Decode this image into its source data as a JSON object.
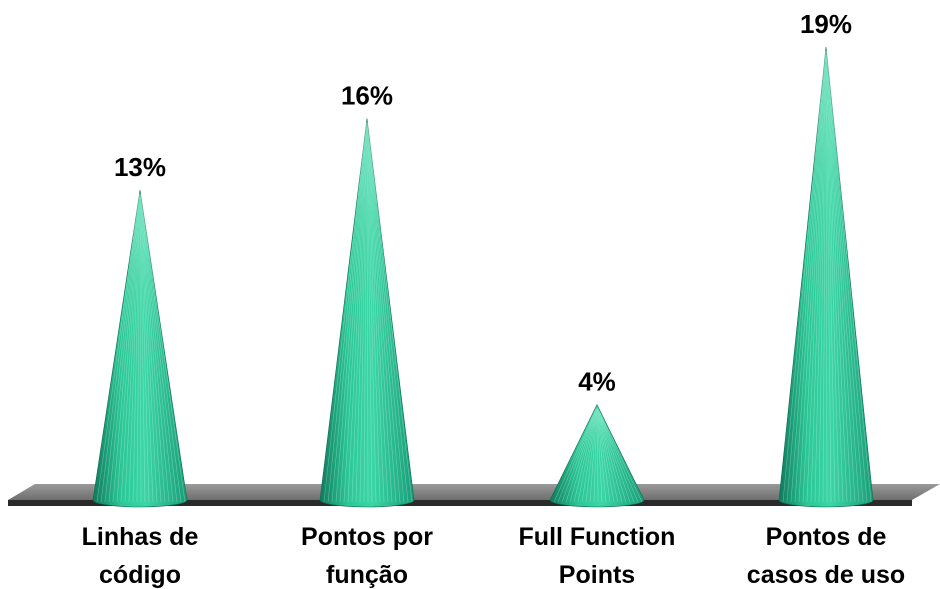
{
  "chart_data": {
    "type": "bar",
    "bar_shape": "cone",
    "categories": [
      [
        "Linhas de",
        "código"
      ],
      [
        "Pontos por",
        "função"
      ],
      [
        "Full Function",
        "Points"
      ],
      [
        "Pontos de",
        "casos de uso"
      ]
    ],
    "values": [
      13,
      16,
      4,
      19
    ],
    "data_labels": [
      "13%",
      "16%",
      "4%",
      "19%"
    ],
    "title": "",
    "xlabel": "",
    "ylabel": "",
    "ylim": [
      0,
      19
    ],
    "grid": false,
    "legend": "none",
    "colors": {
      "cone_light": "#3cd6a6",
      "cone_mid": "#1fb88c",
      "cone_dark": "#0f7a5c",
      "floor_top": "#8c8c8c",
      "floor_edge": "#2a2a2a"
    }
  }
}
